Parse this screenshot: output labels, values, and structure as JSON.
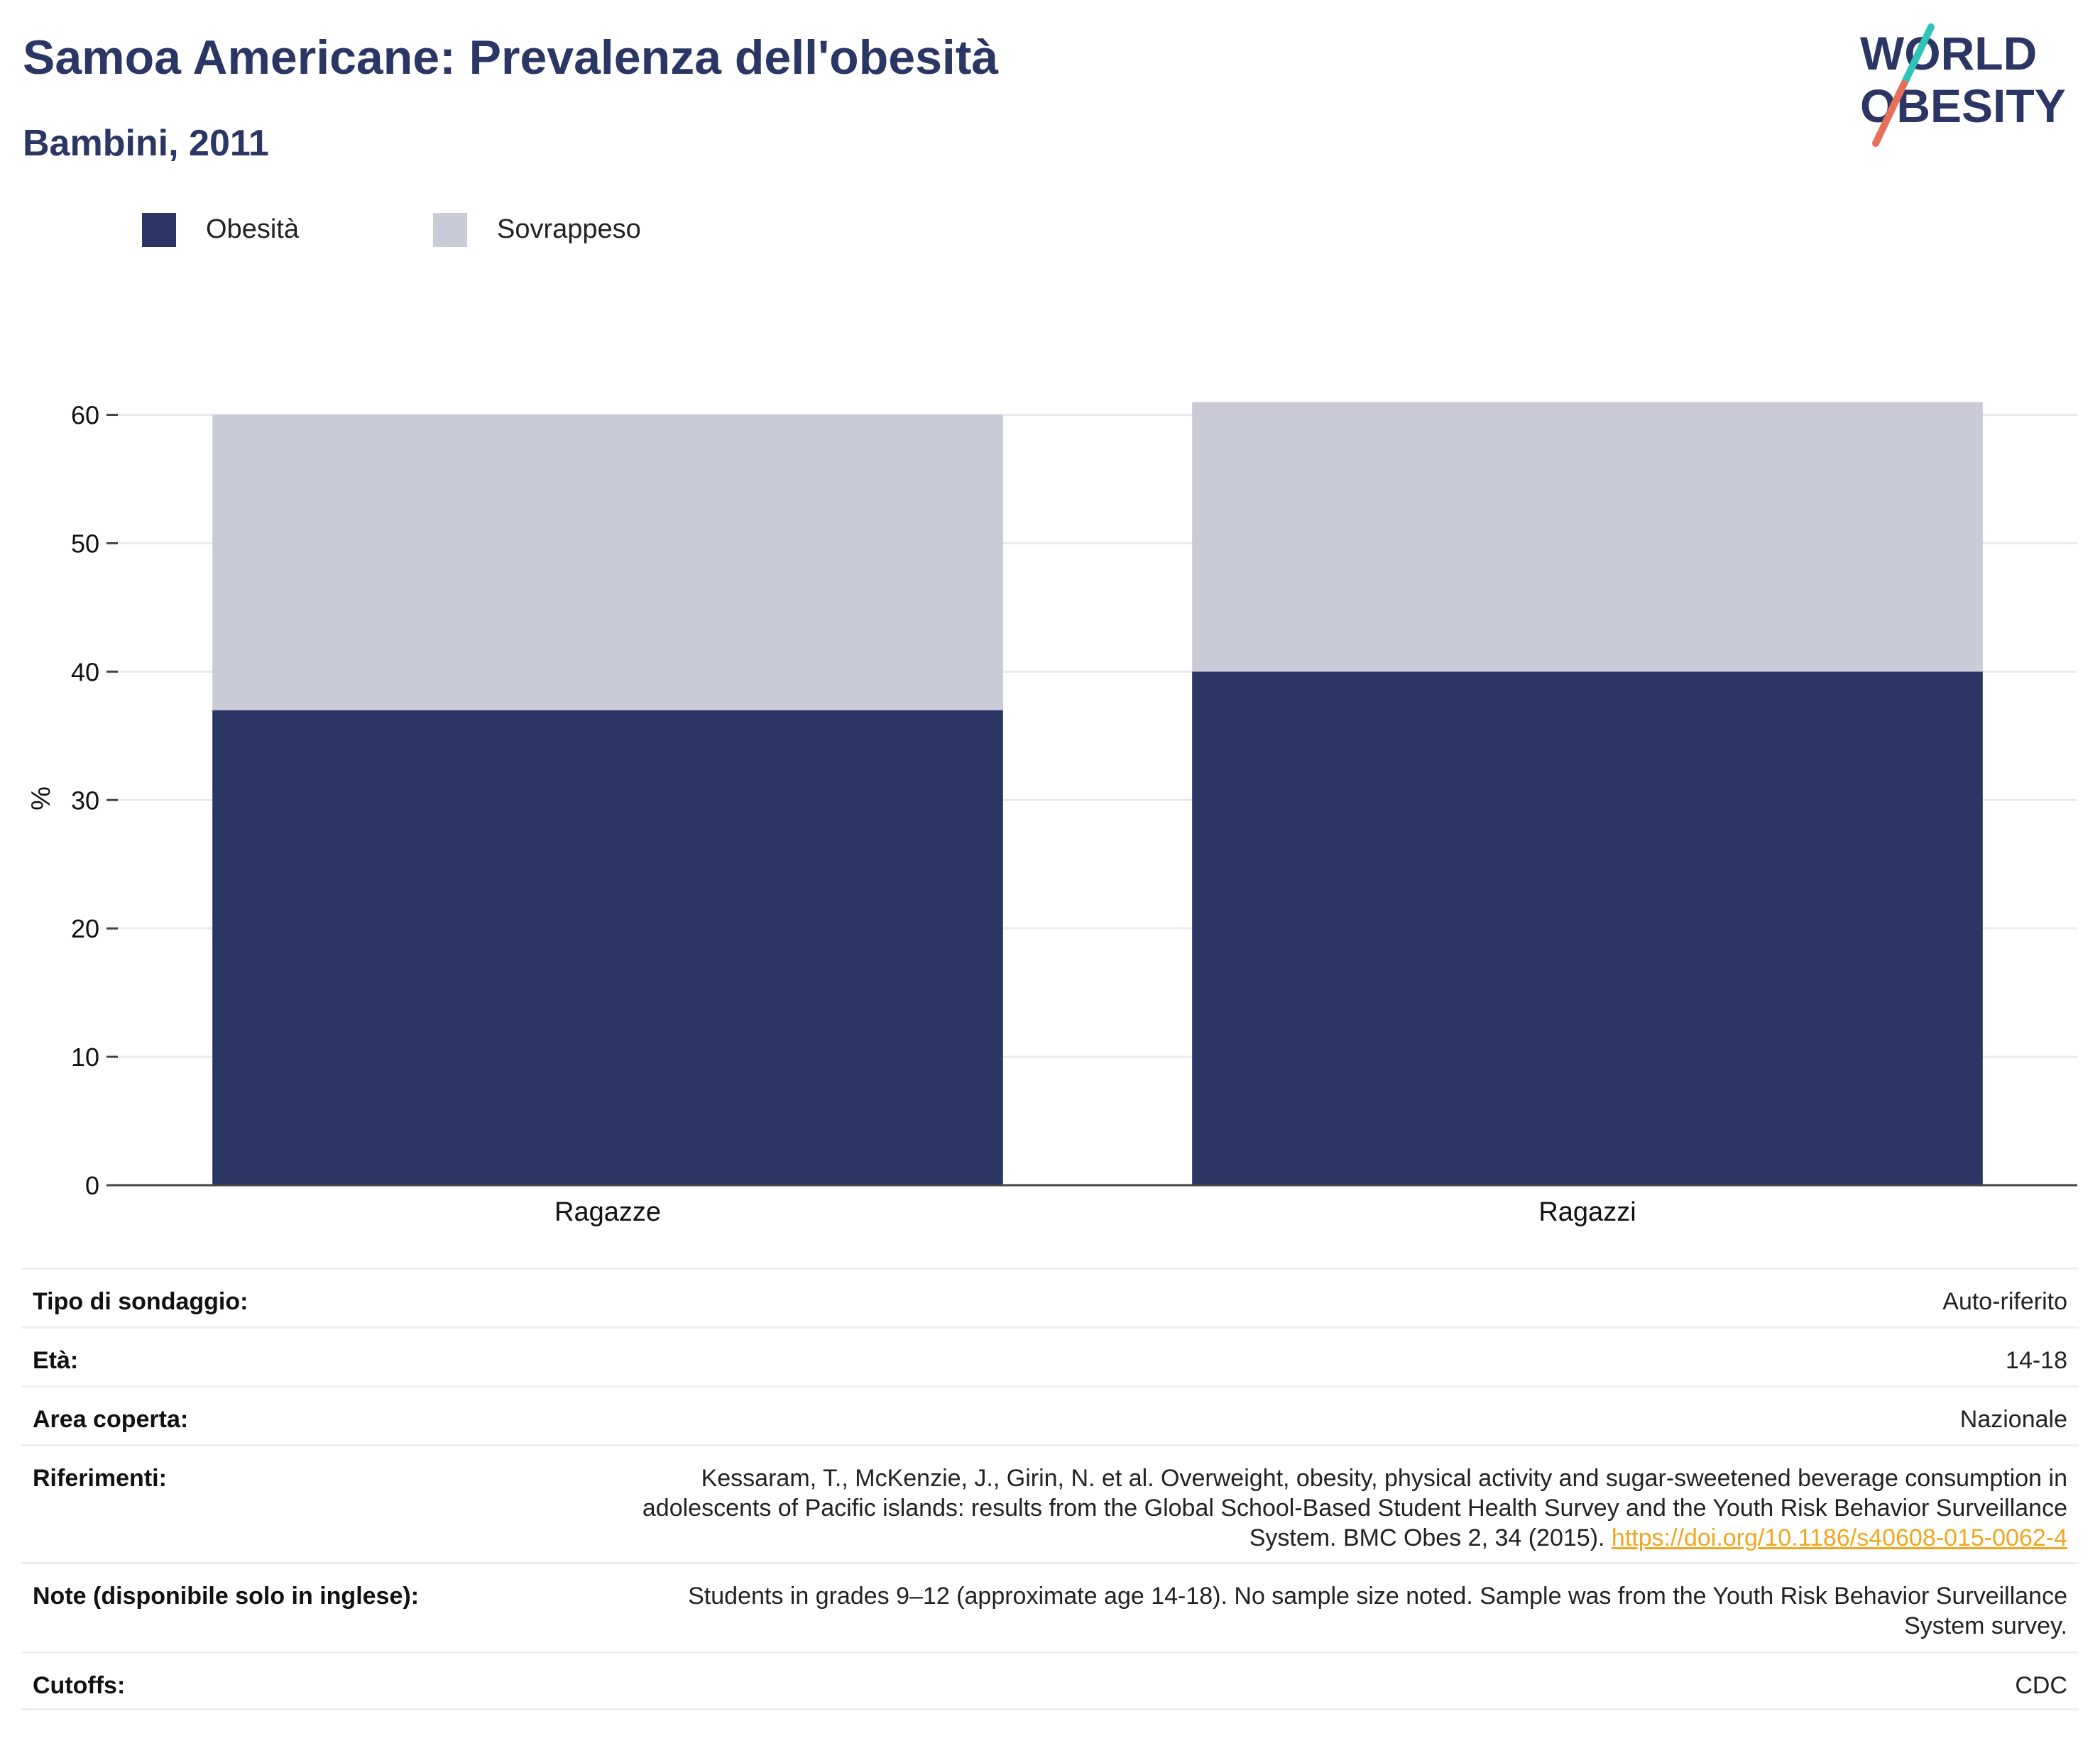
{
  "header": {
    "title": "Samoa Americane: Prevalenza dell'obesità",
    "subtitle": "Bambini, 2011"
  },
  "logo": {
    "line1": "WORLD",
    "line2": "OBESITY",
    "accent_colors": [
      "#2ec4b6",
      "#e8705a"
    ]
  },
  "colors": {
    "obesity": "#2b3664",
    "overweight": "#c9ccd7",
    "grid": "#e8eaf0",
    "axis": "#444444",
    "link": "#f2a61f"
  },
  "chart_data": {
    "type": "bar",
    "stacked": true,
    "categories": [
      "Ragazze",
      "Ragazzi"
    ],
    "series": [
      {
        "name": "Obesità",
        "values": [
          37,
          40
        ]
      },
      {
        "name": "Sovrappeso",
        "values": [
          23,
          21
        ]
      }
    ],
    "ylabel": "%",
    "ylim": [
      0,
      60
    ],
    "yticks": [
      0,
      10,
      20,
      30,
      40,
      50,
      60
    ],
    "grid": true,
    "legend_position": "top-left"
  },
  "info_table": [
    {
      "key": "Tipo di sondaggio:",
      "value": "Auto-riferito"
    },
    {
      "key": "Età:",
      "value": "14-18"
    },
    {
      "key": "Area coperta:",
      "value": "Nazionale"
    },
    {
      "key": "Riferimenti:",
      "value": "Kessaram, T., McKenzie, J., Girin, N. et al. Overweight, obesity, physical activity and sugar-sweetened beverage consumption in adolescents of Pacific islands: results from the Global School-Based Student Health Survey and the Youth Risk Behavior Surveillance System. BMC Obes 2, 34 (2015).",
      "link": "https://doi.org/10.1186/s40608-015-0062-4"
    },
    {
      "key": "Note (disponibile solo in inglese):",
      "value": "Students in grades 9–12 (approximate age 14-18). No sample size noted. Sample was from the Youth Risk Behavior Surveillance System survey."
    },
    {
      "key": "Cutoffs:",
      "value": "CDC"
    }
  ]
}
